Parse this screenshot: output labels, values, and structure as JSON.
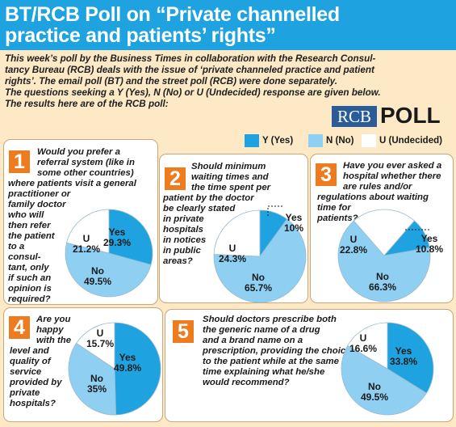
{
  "header": {
    "title_line1": "BT/RCB Poll on “Private channelled",
    "title_line2": "practice and patients’ rights”"
  },
  "intro": {
    "lines": [
      "This week’s poll by the Business Times in collaboration with the Research Consul-",
      "tancy Bureau (RCB) deals with the issue of ‘private channeled practice and patient",
      "rights’. The email poll (BT) and the street poll (RCB) were done separately.",
      "The questions seeking a Y (Yes), N (No) or U (Undecided) response are given below.",
      "The results here are of the RCB poll:"
    ]
  },
  "logo": {
    "text": "RCB",
    "poll": "POLL"
  },
  "legend": [
    {
      "label": "Y (Yes)",
      "color": "#1ea3e0"
    },
    {
      "label": "N (No)",
      "color": "#8ecff2"
    },
    {
      "label": "U (Undecided)",
      "color": "#ffffff"
    }
  ],
  "questions": [
    {
      "number": "1",
      "lines": [
        "Would you prefer a",
        "referral system (like in",
        "some other countries)",
        "where patients visit a general",
        "practitioner or",
        "family doctor",
        "who will",
        "then refer",
        "the patient",
        "to a",
        "consul-",
        "tant, only",
        "if such an",
        "opinion is",
        "required?"
      ]
    },
    {
      "number": "2",
      "lines": [
        "Should minimum",
        "waiting times and",
        "the time spent per",
        "patient by the doctor",
        "be clearly stated",
        "in private",
        "hospitals",
        "in notices",
        "in public",
        "areas?"
      ]
    },
    {
      "number": "3",
      "lines": [
        "Have you ever asked a",
        "hospital whether there",
        "are rules and/or",
        "regulations about waiting",
        "time for",
        "patients?"
      ]
    },
    {
      "number": "4",
      "lines": [
        "Are you",
        "happy",
        "with the",
        "level and",
        "quality of",
        "service",
        "provided by",
        "private",
        "hospitals?"
      ]
    },
    {
      "number": "5",
      "lines": [
        "Should doctors prescribe both",
        "the generic name of a drug",
        "and a brand name on a",
        "prescription, providing the choice",
        "to the patient while at the same",
        "time explaining what he/she",
        "would recommend?"
      ]
    }
  ],
  "chart_data": [
    {
      "type": "pie",
      "question": "1",
      "categories": [
        "Yes",
        "No",
        "U"
      ],
      "values": [
        29.3,
        49.5,
        21.2
      ],
      "labels": [
        "29.3%",
        "49.5%",
        "21.2%"
      ],
      "colors": [
        "#1ea3e0",
        "#8ecff2",
        "#ffffff"
      ]
    },
    {
      "type": "pie",
      "question": "2",
      "categories": [
        "Yes",
        "No",
        "U"
      ],
      "values": [
        10,
        65.7,
        24.3
      ],
      "labels": [
        "10%",
        "65.7%",
        "24.3%"
      ],
      "colors": [
        "#1ea3e0",
        "#8ecff2",
        "#ffffff"
      ]
    },
    {
      "type": "pie",
      "question": "3",
      "categories": [
        "Yes",
        "No",
        "U"
      ],
      "values": [
        10.8,
        66.3,
        22.8
      ],
      "labels": [
        "10.8%",
        "66.3%",
        "22.8%"
      ],
      "colors": [
        "#1ea3e0",
        "#8ecff2",
        "#ffffff"
      ]
    },
    {
      "type": "pie",
      "question": "4",
      "categories": [
        "Yes",
        "No",
        "U"
      ],
      "values": [
        49.8,
        35,
        15.7
      ],
      "labels": [
        "49.8%",
        "35%",
        "15.7%"
      ],
      "colors": [
        "#1ea3e0",
        "#8ecff2",
        "#ffffff"
      ]
    },
    {
      "type": "pie",
      "question": "5",
      "categories": [
        "Yes",
        "No",
        "U"
      ],
      "values": [
        33.8,
        49.5,
        16.6
      ],
      "labels": [
        "33.8%",
        "49.5%",
        "16.6%"
      ],
      "colors": [
        "#1ea3e0",
        "#8ecff2",
        "#ffffff"
      ]
    }
  ]
}
